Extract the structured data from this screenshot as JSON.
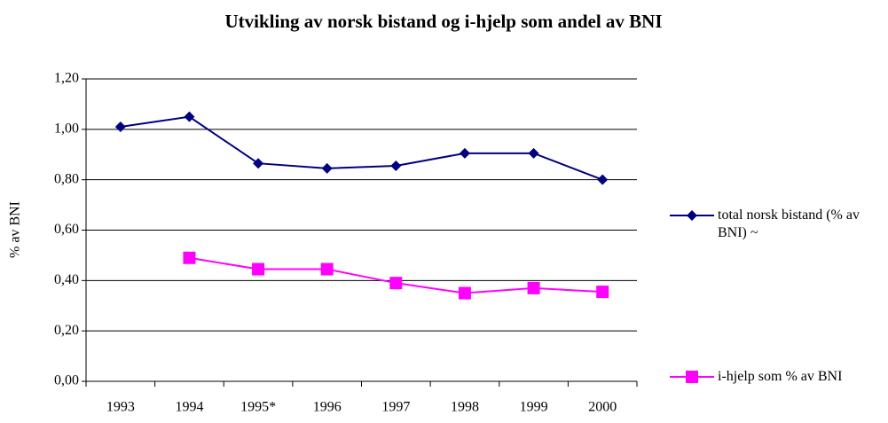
{
  "chart_data": {
    "type": "line",
    "title": "Utvikling av norsk bistand og i-hjelp som andel av BNI",
    "y_label": "% av BNI",
    "categories": [
      "1993",
      "1994",
      "1995*",
      "1996",
      "1997",
      "1998",
      "1999",
      "2000"
    ],
    "series": [
      {
        "name": "total norsk bistand (% av BNI) ~",
        "color": "#000080",
        "marker": "diamond",
        "values": [
          1.01,
          1.05,
          0.865,
          0.845,
          0.855,
          0.905,
          0.905,
          0.8
        ]
      },
      {
        "name": "i-hjelp som % av BNI",
        "color": "#ff00ff",
        "marker": "square",
        "values": [
          null,
          0.49,
          0.445,
          0.445,
          0.39,
          0.35,
          0.37,
          0.355
        ]
      }
    ],
    "ylim": [
      0,
      1.2
    ],
    "yticks": [
      {
        "value": 0,
        "label": "0,00"
      },
      {
        "value": 0.2,
        "label": "0,20"
      },
      {
        "value": 0.4,
        "label": "0,40"
      },
      {
        "value": 0.6,
        "label": "0,60"
      },
      {
        "value": 0.8,
        "label": "0,80"
      },
      {
        "value": 1.0,
        "label": "1,00"
      },
      {
        "value": 1.2,
        "label": "1,20"
      }
    ],
    "grid": true,
    "legend": "right"
  }
}
